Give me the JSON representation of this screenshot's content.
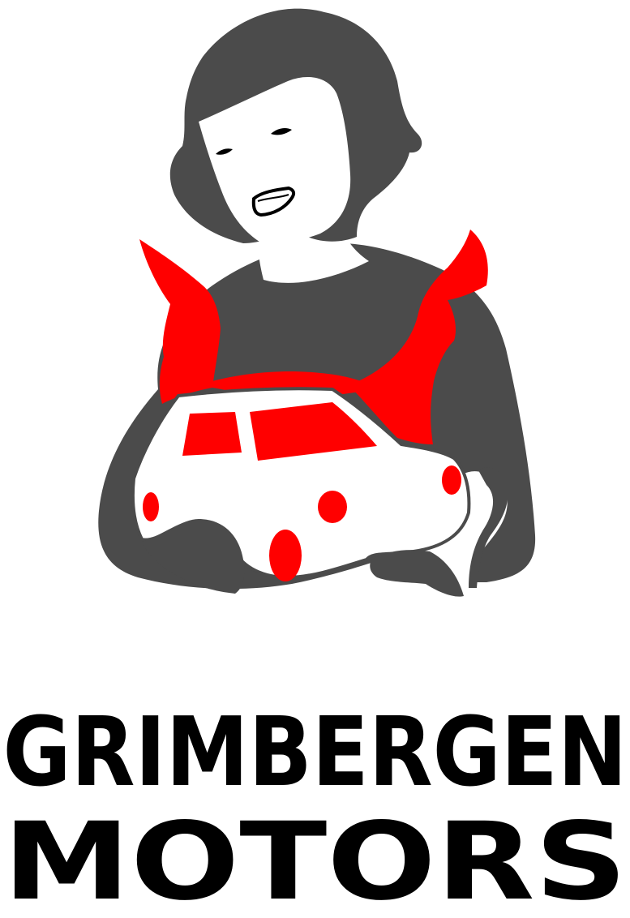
{
  "brand": {
    "line1": "GRIMBERGEN",
    "line2": "MOTORS"
  },
  "colors": {
    "dark": "#4b4b4b",
    "accent": "#ff0000",
    "text": "#000000",
    "background": "#ffffff"
  },
  "icons": {
    "illustration": "woman-holding-car-logo"
  }
}
